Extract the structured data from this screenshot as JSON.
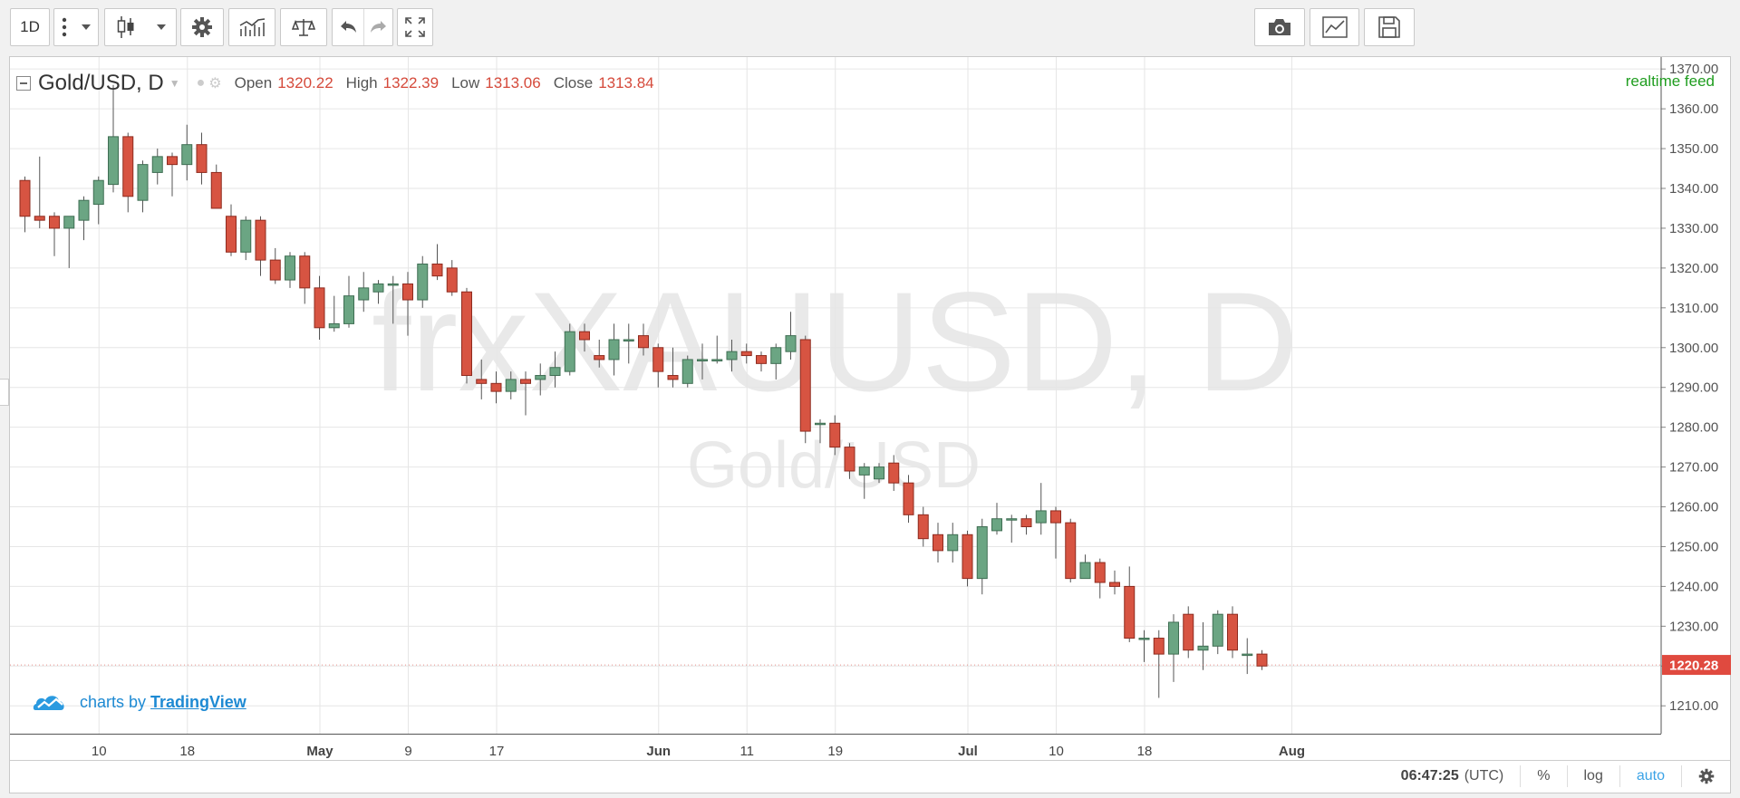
{
  "toolbar": {
    "resolution": "1D",
    "buttons": [
      {
        "name": "bar-style-menu",
        "icon": "dots-menu-icon"
      },
      {
        "name": "candles-style",
        "icon": "candlestick-icon"
      },
      {
        "name": "settings",
        "icon": "gear-icon"
      },
      {
        "name": "indicators",
        "icon": "indicators-icon"
      },
      {
        "name": "compare",
        "icon": "scales-icon"
      },
      {
        "name": "undo",
        "icon": "undo-icon"
      },
      {
        "name": "redo",
        "icon": "redo-icon"
      },
      {
        "name": "fullscreen",
        "icon": "fullscreen-icon"
      },
      {
        "name": "screenshot",
        "icon": "camera-icon"
      },
      {
        "name": "chart-type",
        "icon": "line-chart-icon"
      },
      {
        "name": "save",
        "icon": "floppy-icon"
      }
    ]
  },
  "legend": {
    "symbol": "Gold/USD, D",
    "open_label": "Open",
    "open": "1320.22",
    "high_label": "High",
    "high": "1322.39",
    "low_label": "Low",
    "low": "1313.06",
    "close_label": "Close",
    "close": "1313.84"
  },
  "realtime_label": "realtime feed",
  "watermark": {
    "ticker": "frxXAUUSD, D",
    "name": "Gold/USD"
  },
  "branding": {
    "prefix": "charts by",
    "brand": "TradingView"
  },
  "statusbar": {
    "time": "06:47:25",
    "tz": "(UTC)",
    "percent": "%",
    "log": "log",
    "auto": "auto"
  },
  "colors": {
    "up": "#6ba583",
    "down": "#d75442",
    "grid": "#e6e6e6",
    "axis_text": "#555555",
    "price_tag": "#e04a3f"
  },
  "chart_data": {
    "type": "candlestick",
    "y_range": [
      1203,
      1373
    ],
    "y_ticks": [
      1210,
      1220,
      1230,
      1240,
      1250,
      1260,
      1270,
      1280,
      1290,
      1300,
      1310,
      1320,
      1330,
      1340,
      1350,
      1360,
      1370
    ],
    "y_tick_labels": [
      "1210.00",
      "1220.00",
      "1230.00",
      "1240.00",
      "1250.00",
      "1260.00",
      "1270.00",
      "1280.00",
      "1290.00",
      "1300.00",
      "1310.00",
      "1320.00",
      "1330.00",
      "1340.00",
      "1350.00",
      "1360.00",
      "1370.00"
    ],
    "x_ticks": [
      {
        "index": 5,
        "label": "10",
        "bold": false
      },
      {
        "index": 11,
        "label": "18",
        "bold": false
      },
      {
        "index": 20,
        "label": "May",
        "bold": true
      },
      {
        "index": 26,
        "label": "9",
        "bold": false
      },
      {
        "index": 32,
        "label": "17",
        "bold": false
      },
      {
        "index": 43,
        "label": "Jun",
        "bold": true
      },
      {
        "index": 49,
        "label": "11",
        "bold": false
      },
      {
        "index": 55,
        "label": "19",
        "bold": false
      },
      {
        "index": 64,
        "label": "Jul",
        "bold": true
      },
      {
        "index": 70,
        "label": "10",
        "bold": false
      },
      {
        "index": 76,
        "label": "18",
        "bold": false
      },
      {
        "index": 86,
        "label": "Aug",
        "bold": true
      }
    ],
    "last_price_label": "1220.28",
    "last_price": 1220.28,
    "ohlc": [
      [
        1342,
        1343,
        1329,
        1333
      ],
      [
        1333,
        1348,
        1330,
        1332
      ],
      [
        1333,
        1334,
        1323,
        1330
      ],
      [
        1330,
        1333,
        1320,
        1333
      ],
      [
        1332,
        1338,
        1327,
        1337
      ],
      [
        1336,
        1343,
        1331,
        1342
      ],
      [
        1341,
        1366,
        1339,
        1353
      ],
      [
        1353,
        1354,
        1334,
        1338
      ],
      [
        1337,
        1347,
        1334,
        1346
      ],
      [
        1344,
        1350,
        1341,
        1348
      ],
      [
        1348,
        1349,
        1338,
        1346
      ],
      [
        1346,
        1356,
        1342,
        1351
      ],
      [
        1351,
        1354,
        1341,
        1344
      ],
      [
        1344,
        1346,
        1335,
        1335
      ],
      [
        1333,
        1336,
        1323,
        1324
      ],
      [
        1324,
        1333,
        1322,
        1332
      ],
      [
        1332,
        1333,
        1318,
        1322
      ],
      [
        1322,
        1325,
        1316,
        1317
      ],
      [
        1317,
        1324,
        1315,
        1323
      ],
      [
        1323,
        1324,
        1311,
        1315
      ],
      [
        1315,
        1318,
        1302,
        1305
      ],
      [
        1305,
        1313,
        1304,
        1306
      ],
      [
        1306,
        1318,
        1305,
        1313
      ],
      [
        1312,
        1319,
        1309,
        1315
      ],
      [
        1314,
        1317,
        1311,
        1316
      ],
      [
        1316,
        1318,
        1306,
        1316
      ],
      [
        1316,
        1319,
        1303,
        1312
      ],
      [
        1312,
        1323,
        1310,
        1321
      ],
      [
        1321,
        1326,
        1317,
        1318
      ],
      [
        1320,
        1322,
        1313,
        1314
      ],
      [
        1314,
        1315,
        1291,
        1293
      ],
      [
        1292,
        1297,
        1287,
        1291
      ],
      [
        1291,
        1294,
        1286,
        1289
      ],
      [
        1289,
        1294,
        1287,
        1292
      ],
      [
        1292,
        1294,
        1283,
        1291
      ],
      [
        1292,
        1296,
        1288,
        1293
      ],
      [
        1293,
        1299,
        1290,
        1295
      ],
      [
        1294,
        1306,
        1293,
        1304
      ],
      [
        1304,
        1306,
        1299,
        1302
      ],
      [
        1298,
        1302,
        1295,
        1297
      ],
      [
        1297,
        1306,
        1293,
        1302
      ],
      [
        1302,
        1306,
        1296,
        1302
      ],
      [
        1303,
        1306,
        1298,
        1300
      ],
      [
        1300,
        1301,
        1290,
        1294
      ],
      [
        1293,
        1300,
        1290,
        1292
      ],
      [
        1291,
        1298,
        1290,
        1297
      ],
      [
        1297,
        1301,
        1292,
        1297
      ],
      [
        1297,
        1303,
        1296,
        1297
      ],
      [
        1297,
        1302,
        1294,
        1299
      ],
      [
        1299,
        1301,
        1296,
        1298
      ],
      [
        1298,
        1299,
        1294,
        1296
      ],
      [
        1296,
        1301,
        1292,
        1300
      ],
      [
        1299,
        1309,
        1297,
        1303
      ],
      [
        1302,
        1303,
        1276,
        1279
      ],
      [
        1281,
        1282,
        1276,
        1281
      ],
      [
        1281,
        1283,
        1273,
        1275
      ],
      [
        1275,
        1276,
        1267,
        1269
      ],
      [
        1268,
        1271,
        1262,
        1270
      ],
      [
        1267,
        1271,
        1266,
        1270
      ],
      [
        1271,
        1273,
        1264,
        1266
      ],
      [
        1266,
        1268,
        1256,
        1258
      ],
      [
        1258,
        1260,
        1250,
        1252
      ],
      [
        1253,
        1256,
        1246,
        1249
      ],
      [
        1249,
        1256,
        1246,
        1253
      ],
      [
        1253,
        1254,
        1240,
        1242
      ],
      [
        1242,
        1257,
        1238,
        1255
      ],
      [
        1254,
        1261,
        1253,
        1257
      ],
      [
        1257,
        1258,
        1251,
        1257
      ],
      [
        1257,
        1258,
        1253,
        1255
      ],
      [
        1256,
        1266,
        1253,
        1259
      ],
      [
        1259,
        1260,
        1247,
        1256
      ],
      [
        1256,
        1257,
        1241,
        1242
      ],
      [
        1242,
        1248,
        1242,
        1246
      ],
      [
        1246,
        1247,
        1237,
        1241
      ],
      [
        1241,
        1244,
        1238,
        1240
      ],
      [
        1240,
        1245,
        1226,
        1227
      ],
      [
        1227,
        1229,
        1221,
        1227
      ],
      [
        1227,
        1229,
        1212,
        1223
      ],
      [
        1223,
        1233,
        1216,
        1231
      ],
      [
        1233,
        1235,
        1222,
        1224
      ],
      [
        1224,
        1231,
        1219,
        1225
      ],
      [
        1225,
        1234,
        1223,
        1233
      ],
      [
        1233,
        1235,
        1222,
        1224
      ],
      [
        1223,
        1227,
        1218,
        1223
      ],
      [
        1223,
        1224,
        1219,
        1220
      ]
    ]
  }
}
